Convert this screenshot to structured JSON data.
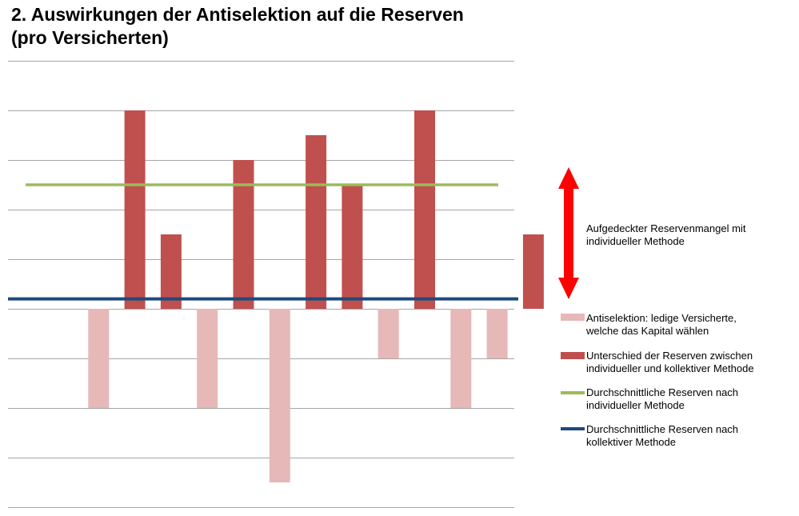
{
  "title": {
    "line1": "2. Auswirkungen der Antiselektion auf die Reserven",
    "line2": "(pro Versicherten)"
  },
  "arrow_label": {
    "line1": "Aufgedeckter Reservenmangel mit",
    "line2": "individueller Methode"
  },
  "legend": [
    {
      "line1": "Antiselektion: ledige Versicherte,",
      "line2": "welche das Kapital wählen",
      "color": "#e6b8b7",
      "kind": "swatch"
    },
    {
      "line1": "Unterschied der Reserven zwischen",
      "line2": "individueller und kollektiver Methode",
      "color": "#c0504d",
      "kind": "swatch"
    },
    {
      "line1": "Durchschnittliche Reserven nach",
      "line2": "individueller Methode",
      "color": "#9bbb59",
      "kind": "line"
    },
    {
      "line1": "Durchschnittliche Reserven nach",
      "line2": "kollektiver Methode",
      "color": "#1f497d",
      "kind": "line"
    }
  ],
  "colors": {
    "antiselection": "#e6b8b7",
    "difference": "#c0504d",
    "avg_individual": "#9bbb59",
    "avg_collective": "#1f497d",
    "arrow": "#ff0000",
    "grid": "#a6a6a6"
  },
  "chart_data": {
    "type": "bar",
    "title": "2. Auswirkungen der Antiselektion auf die Reserven (pro Versicherten)",
    "xlabel": "",
    "ylabel": "",
    "ylim": [
      -4,
      5
    ],
    "grid": true,
    "legend_position": "right",
    "series": [
      {
        "name": "Antiselektion: ledige Versicherte, welche das Kapital wählen",
        "values": [
          0,
          -2,
          0,
          0,
          -2,
          0,
          -3.5,
          0,
          0,
          -1,
          0,
          -2,
          -1,
          0
        ]
      },
      {
        "name": "Unterschied der Reserven zwischen individueller und kollektiver Methode",
        "values": [
          0,
          0,
          4,
          1.5,
          0,
          3,
          0,
          3.5,
          2.5,
          0,
          4,
          0,
          0,
          1.5
        ]
      }
    ],
    "lines": [
      {
        "name": "Durchschnittliche Reserven nach individueller Methode",
        "value": 2.5
      },
      {
        "name": "Durchschnittliche Reserven nach kollektiver Methode",
        "value": 0.2
      }
    ],
    "annotation": "Aufgedeckter Reservenmangel mit individueller Methode"
  }
}
